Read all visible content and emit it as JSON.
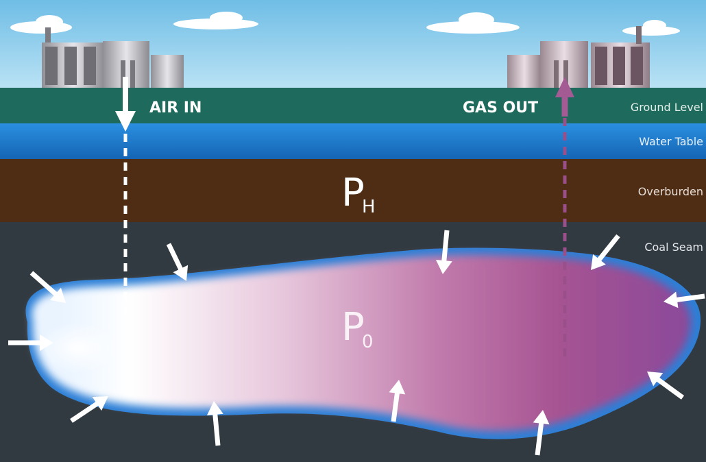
{
  "labels": {
    "air_in": "AIR IN",
    "gas_out": "GAS OUT",
    "ground_level": "Ground Level",
    "water_table": "Water Table",
    "overburden": "Overburden",
    "coal_seam": "Coal Seam"
  },
  "pressures": {
    "hydrostatic": {
      "symbol": "P",
      "subscript": "H"
    },
    "cavity": {
      "symbol": "P",
      "subscript": "0"
    }
  },
  "colors": {
    "sky": "#8fcdeb",
    "ground": "#1e6a5c",
    "water": "#1f7fd0",
    "overburden": "#4e2d14",
    "coal": "#323a41",
    "air_arrow": "#ffffff",
    "gas_arrow": "#9b4f8a"
  },
  "icons": [
    "inlet-plant-icon",
    "outlet-plant-icon",
    "cloud-icon",
    "pressure-arrow-icon"
  ]
}
